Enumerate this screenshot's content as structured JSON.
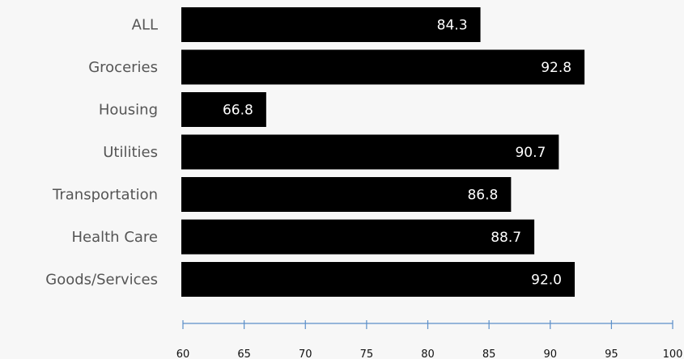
{
  "chart_data": {
    "type": "bar",
    "orientation": "horizontal",
    "categories": [
      "ALL",
      "Groceries",
      "Housing",
      "Utilities",
      "Transportation",
      "Health Care",
      "Goods/Services"
    ],
    "values": [
      84.3,
      92.8,
      66.8,
      90.7,
      86.8,
      88.7,
      92.0
    ],
    "value_labels": [
      "84.3",
      "92.8",
      "66.8",
      "90.7",
      "86.8",
      "88.7",
      "92.0"
    ],
    "xlim": [
      60,
      100
    ],
    "xticks": [
      60,
      65,
      70,
      75,
      80,
      85,
      90,
      95,
      100
    ],
    "title": "",
    "xlabel": "",
    "ylabel": "",
    "grid": false,
    "legend": "none",
    "bar_color": "#000000",
    "axis_color": "#5b8fc9",
    "value_label_color": "#ffffff"
  }
}
